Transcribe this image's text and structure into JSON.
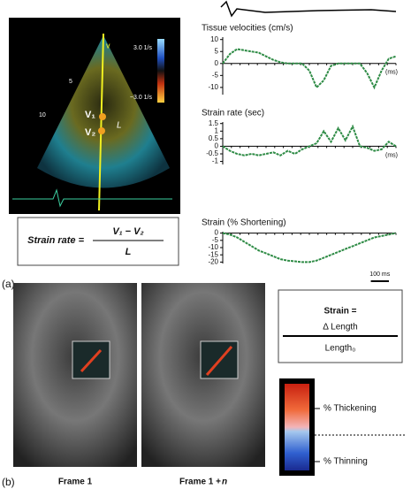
{
  "panel_a": {
    "label": "(a)",
    "image_labels": {
      "v": "v",
      "scale_top": "3.0 1/s",
      "scale_bottom": "−3.0 1/s",
      "depth_5": "5",
      "depth_10": "10",
      "v1": "V₁",
      "v2": "V₂",
      "l": "L"
    },
    "formula": {
      "lhs": "Strain rate =",
      "numerator": "V₁ − V₂",
      "denominator": "L"
    }
  },
  "chart_data": [
    {
      "type": "line",
      "title": "Tissue velocities (cm/s)",
      "x_label": "(ms)",
      "color": "#2e8b45",
      "x": [
        0,
        40,
        80,
        120,
        160,
        200,
        240,
        280,
        320,
        360,
        400,
        440,
        480,
        520,
        560,
        600,
        640,
        680,
        720,
        760,
        800,
        840,
        880,
        920,
        960
      ],
      "values": [
        0,
        4,
        6,
        5.5,
        5,
        4.5,
        3,
        1.5,
        0.5,
        0,
        0,
        0,
        -3,
        -10,
        -7,
        -1,
        0,
        0,
        0,
        0,
        -4,
        -10,
        -3,
        2,
        3
      ],
      "xlim": [
        0,
        960
      ],
      "ylim": [
        -13,
        11
      ],
      "yticks": [
        10,
        5,
        0,
        -5,
        -10
      ]
    },
    {
      "type": "line",
      "title": "Strain rate (sec)",
      "x_label": "(ms)",
      "color": "#2e8b45",
      "x": [
        0,
        40,
        80,
        120,
        160,
        200,
        240,
        280,
        320,
        360,
        400,
        440,
        480,
        520,
        560,
        600,
        640,
        680,
        720,
        760,
        800,
        840,
        880,
        920,
        960
      ],
      "values": [
        0,
        -0.3,
        -0.5,
        -0.6,
        -0.5,
        -0.6,
        -0.5,
        -0.4,
        -0.6,
        -0.3,
        -0.5,
        -0.2,
        0,
        0.2,
        1.0,
        0.3,
        1.2,
        0.4,
        1.3,
        0,
        -0.1,
        -0.3,
        -0.2,
        0.3,
        0
      ],
      "xlim": [
        0,
        960
      ],
      "ylim": [
        -1.2,
        1.6
      ],
      "yticks": [
        1.5,
        1,
        0.5,
        0,
        -0.5,
        -1
      ]
    },
    {
      "type": "line",
      "title": "Strain (% Shortening)",
      "color": "#2e8b45",
      "x": [
        0,
        40,
        80,
        120,
        160,
        200,
        240,
        280,
        320,
        360,
        400,
        440,
        480,
        520,
        560,
        600,
        640,
        680,
        720,
        760,
        800,
        840,
        880,
        920,
        960
      ],
      "values": [
        0,
        -1,
        -3,
        -6,
        -9,
        -12,
        -14,
        -16,
        -18,
        -19,
        -19.5,
        -20,
        -20,
        -19,
        -17,
        -15,
        -13,
        -11,
        -9,
        -7,
        -5,
        -3,
        -2,
        -1,
        0
      ],
      "xlim": [
        0,
        960
      ],
      "ylim": [
        -21,
        1
      ],
      "yticks": [
        0,
        -5,
        -10,
        -15,
        -20
      ],
      "scale_bar": {
        "value": 100,
        "label": "100 ms"
      }
    }
  ],
  "panel_b": {
    "label": "(b)",
    "frame_1": "Frame 1",
    "frame_n": {
      "text": "Frame 1 + ",
      "var": "n"
    },
    "formula": {
      "lhs": "Strain =",
      "numerator": "Δ Length",
      "denominator": "Length₀"
    },
    "legend": {
      "top": "% Thickening",
      "bottom": "% Thinning"
    }
  }
}
